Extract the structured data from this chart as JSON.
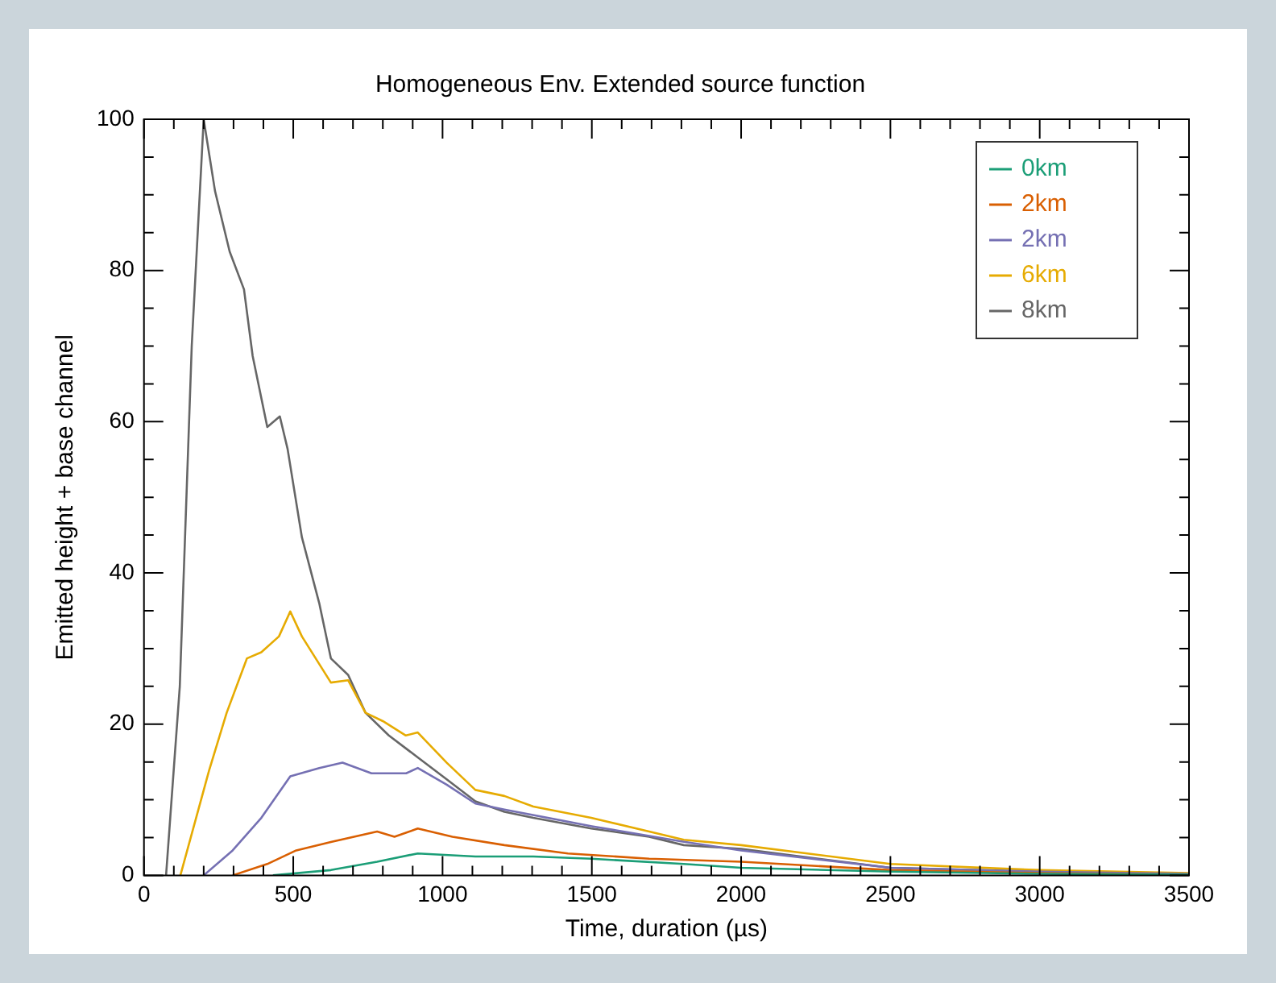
{
  "chart_data": {
    "type": "line",
    "title": "Homogeneous Env. Extended source function",
    "xlabel": "Time, duration (µs)",
    "ylabel": "Emitted height + base channel",
    "xlim": [
      0,
      3500
    ],
    "ylim": [
      0,
      100
    ],
    "xticks": [
      0,
      {
        "value": 100,
        "label": null
      },
      {
        "value": 200,
        "label": null
      },
      {
        "value": 300,
        "label": null
      },
      {
        "value": 400,
        "label": null
      },
      500,
      {
        "value": 600,
        "label": null
      },
      {
        "value": 700,
        "label": null
      },
      {
        "value": 800,
        "label": null
      },
      {
        "value": 900,
        "label": null
      },
      1000,
      {
        "value": 1100,
        "label": null
      },
      {
        "value": 1200,
        "label": null
      },
      {
        "value": 1300,
        "label": null
      },
      {
        "value": 1400,
        "label": null
      },
      1500,
      {
        "value": 1600,
        "label": null
      },
      {
        "value": 1700,
        "label": null
      },
      {
        "value": 1800,
        "label": null
      },
      {
        "value": 1900,
        "label": null
      },
      2000,
      {
        "value": 2100,
        "label": null
      },
      {
        "value": 2200,
        "label": null
      },
      {
        "value": 2300,
        "label": null
      },
      {
        "value": 2400,
        "label": null
      },
      2500,
      {
        "value": 2600,
        "label": null
      },
      {
        "value": 2700,
        "label": null
      },
      {
        "value": 2800,
        "label": null
      },
      {
        "value": 2900,
        "label": null
      },
      3000,
      {
        "value": 3100,
        "label": null
      },
      {
        "value": 3200,
        "label": null
      },
      {
        "value": 3300,
        "label": null
      },
      {
        "value": 3400,
        "label": null
      },
      3500
    ],
    "yticks": [
      0,
      {
        "value": 5,
        "label": null
      },
      {
        "value": 10,
        "label": null
      },
      {
        "value": 15,
        "label": null
      },
      20,
      {
        "value": 25,
        "label": null
      },
      {
        "value": 30,
        "label": null
      },
      {
        "value": 35,
        "label": null
      },
      40,
      {
        "value": 45,
        "label": null
      },
      {
        "value": 50,
        "label": null
      },
      {
        "value": 55,
        "label": null
      },
      60,
      {
        "value": 65,
        "label": null
      },
      {
        "value": 70,
        "label": null
      },
      {
        "value": 75,
        "label": null
      },
      80,
      {
        "value": 85,
        "label": null
      },
      {
        "value": 90,
        "label": null
      },
      {
        "value": 95,
        "label": null
      },
      100
    ],
    "grid": false,
    "legend": "top right",
    "marker": "none",
    "line_style": "solid",
    "series": [
      {
        "name": "0km",
        "color": "#1b9e77",
        "x": [
          432,
          626,
          781,
          917,
          1110,
          1304,
          1498,
          1808,
          2000,
          2500,
          3000,
          3500
        ],
        "values": [
          0,
          0.7,
          1.8,
          2.9,
          2.5,
          2.5,
          2.2,
          1.5,
          1,
          0.5,
          0.2,
          0.1
        ]
      },
      {
        "name": "2km",
        "color": "#d95f02",
        "x": [
          297,
          413,
          510,
          626,
          781,
          839,
          917,
          1033,
          1207,
          1420,
          1692,
          2000,
          2500,
          3000,
          3500
        ],
        "values": [
          0,
          1.5,
          3.3,
          4.4,
          5.8,
          5.1,
          6.2,
          5.1,
          4,
          2.9,
          2.2,
          1.8,
          0.7,
          0.3,
          0.1
        ]
      },
      {
        "name": "2km",
        "color": "#7570b3",
        "x": [
          200,
          297,
          393,
          490,
          587,
          665,
          762,
          878,
          917,
          1014,
          1110,
          1207,
          1500,
          1800,
          2000,
          2500,
          3000,
          3500
        ],
        "values": [
          0,
          3.3,
          7.6,
          13.1,
          14.2,
          14.9,
          13.5,
          13.5,
          14.2,
          12,
          9.5,
          8.7,
          6.5,
          4.5,
          3.3,
          1,
          0.5,
          0.2
        ]
      },
      {
        "name": "6km",
        "color": "#e6ab02",
        "x": [
          122,
          219,
          277,
          345,
          393,
          452,
          490,
          529,
          626,
          684,
          742,
          800,
          877,
          917,
          1014,
          1110,
          1207,
          1304,
          1498,
          1692,
          1808,
          2000,
          2500,
          3000,
          3500
        ],
        "values": [
          0,
          14,
          21.5,
          28.7,
          29.5,
          31.6,
          34.9,
          31.6,
          25.5,
          25.8,
          21.5,
          20.4,
          18.5,
          18.9,
          14.9,
          11.3,
          10.5,
          9.1,
          7.6,
          5.8,
          4.7,
          4,
          1.5,
          0.7,
          0.3
        ]
      },
      {
        "name": "8km",
        "color": "#666666",
        "x": [
          74,
          120,
          160,
          200,
          238,
          287,
          335,
          364,
          413,
          455,
          481,
          529,
          587,
          626,
          684,
          742,
          820,
          917,
          1014,
          1110,
          1207,
          1304,
          1498,
          1692,
          1808,
          2000,
          2500,
          3000,
          3500
        ],
        "values": [
          0,
          25,
          70,
          100,
          90.5,
          82.5,
          77.5,
          68.7,
          59.3,
          60.7,
          56.4,
          44.7,
          36,
          28.7,
          26.5,
          21.5,
          18.5,
          15.6,
          12.7,
          9.8,
          8.4,
          7.6,
          6.2,
          5.1,
          4,
          3.5,
          1,
          0.5,
          0.2
        ]
      }
    ]
  }
}
